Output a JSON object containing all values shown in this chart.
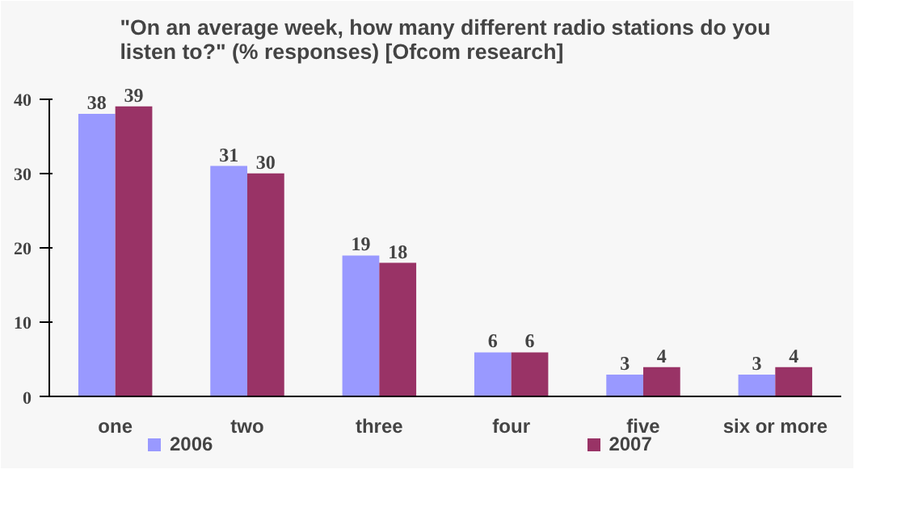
{
  "chart_data": {
    "type": "bar",
    "title": "\"On an average week, how many different radio stations do you listen to?\" (% responses) [Ofcom research]",
    "categories": [
      "one",
      "two",
      "three",
      "four",
      "five",
      "six or more"
    ],
    "series": [
      {
        "name": "2006",
        "color": "#9999ff",
        "values": [
          38,
          31,
          19,
          6,
          3,
          3
        ]
      },
      {
        "name": "2007",
        "color": "#993366",
        "values": [
          39,
          30,
          18,
          6,
          4,
          4
        ]
      }
    ],
    "ylim": [
      0,
      40
    ],
    "yticks": [
      0,
      10,
      20,
      30,
      40
    ],
    "grid": false,
    "legend": "bottom",
    "data_labels": true
  }
}
